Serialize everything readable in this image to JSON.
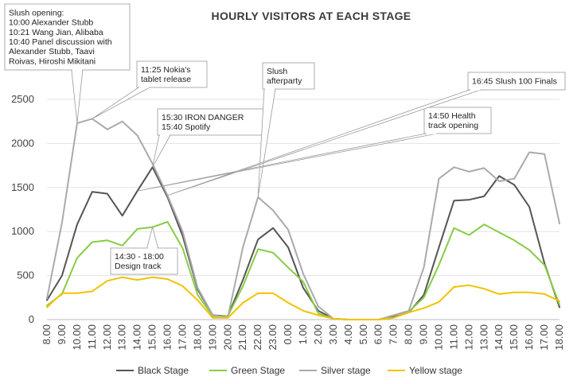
{
  "chart_data": {
    "type": "line",
    "title": "HOURLY VISITORS AT EACH STAGE",
    "xlabel": "",
    "ylabel": "",
    "ylim": [
      0,
      2500
    ],
    "yticks": [
      0,
      500,
      1000,
      1500,
      2000,
      2500
    ],
    "grid": true,
    "legend_position": "bottom",
    "categories": [
      "8.00",
      "9.00",
      "10.00",
      "11.00",
      "12.00",
      "13.00",
      "14.00",
      "15.00",
      "16.00",
      "17.00",
      "18.00",
      "19.00",
      "20.00",
      "21.00",
      "22.00",
      "23.00",
      "0.00",
      "1.00",
      "2.00",
      "3.00",
      "4.00",
      "5.00",
      "6.00",
      "7.00",
      "8.00",
      "9.00",
      "10.00",
      "11.00",
      "12.00",
      "13.00",
      "14.00",
      "15.00",
      "16.00",
      "17.00",
      "18.00"
    ],
    "series": [
      {
        "name": "Black Stage",
        "color": "#555555",
        "values": [
          220,
          500,
          1080,
          1450,
          1430,
          1180,
          1460,
          1730,
          1390,
          950,
          340,
          50,
          40,
          450,
          910,
          1040,
          820,
          360,
          100,
          10,
          0,
          0,
          0,
          30,
          80,
          280,
          820,
          1350,
          1360,
          1400,
          1630,
          1530,
          1280,
          640,
          140
        ]
      },
      {
        "name": "Green Stage",
        "color": "#88cc44",
        "values": [
          160,
          290,
          700,
          880,
          900,
          840,
          1030,
          1050,
          1110,
          810,
          280,
          40,
          40,
          380,
          800,
          760,
          590,
          430,
          70,
          10,
          0,
          0,
          0,
          20,
          90,
          250,
          620,
          1040,
          960,
          1080,
          990,
          900,
          790,
          620,
          170
        ]
      },
      {
        "name": "Silver stage",
        "color": "#aaaaaa",
        "values": [
          240,
          1100,
          2230,
          2280,
          2160,
          2250,
          2090,
          1770,
          1410,
          1000,
          360,
          50,
          30,
          820,
          1390,
          1240,
          1020,
          520,
          150,
          10,
          0,
          0,
          0,
          50,
          100,
          590,
          1600,
          1730,
          1680,
          1720,
          1570,
          1600,
          1900,
          1880,
          1090
        ]
      },
      {
        "name": "Yellow stage",
        "color": "#f2c200",
        "values": [
          140,
          300,
          300,
          320,
          440,
          480,
          450,
          480,
          460,
          380,
          220,
          20,
          20,
          190,
          300,
          300,
          190,
          100,
          50,
          10,
          0,
          0,
          0,
          20,
          80,
          130,
          200,
          370,
          390,
          350,
          290,
          310,
          310,
          290,
          210
        ]
      }
    ],
    "annotations": [
      {
        "lines": [
          "Slush opening:",
          "10:00 Alexander Stubb",
          "10:21 Wang Jian, Alibaba",
          "10:40 Panel discussion with",
          "Alexander Stubb, Taavi",
          "Roivas, Hiroshi Mikitani"
        ],
        "target": "10.00",
        "series": "Silver stage"
      },
      {
        "lines": [
          "11:25 Nokia's",
          "tablet release"
        ],
        "target": "11.00",
        "series": "Silver stage"
      },
      {
        "lines": [
          "15:30 IRON DANGER",
          "15:40 Spotify"
        ],
        "target": "15.00",
        "series": "Black Stage"
      },
      {
        "lines": [
          "Slush",
          "afterparty"
        ],
        "target": "22.00",
        "series": "Silver stage"
      },
      {
        "lines": [
          "14:30 - 18:00",
          "Design track"
        ],
        "target": "15.00",
        "series": "Green Stage"
      },
      {
        "lines": [
          "14:50 Health",
          "track opening"
        ],
        "target": "14.00",
        "series": "Black Stage"
      },
      {
        "lines": [
          "16:45 Slush 100 Finals"
        ],
        "target": "16.00",
        "series": "Silver stage"
      }
    ]
  }
}
